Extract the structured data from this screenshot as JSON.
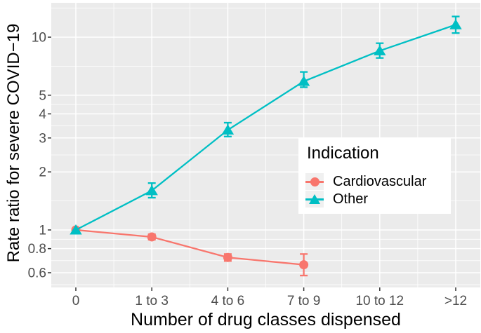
{
  "style": {
    "background": "#FFFFFF",
    "panel_background": "#EBEBEB",
    "gridline_color": "#FFFFFF",
    "tick_color": "#333333",
    "tick_label_color": "#4D4D4D",
    "axis_title_color": "#000000",
    "legend_key_background": "#F0F0F0"
  },
  "chart_data": {
    "type": "line",
    "title": "",
    "xlabel": "Number of drug classes dispensed",
    "ylabel": "Rate ratio for severe COVID−19",
    "x_categories": [
      "0",
      "1 to 3",
      "4 to 6",
      "7 to 9",
      "10 to 12",
      ">12"
    ],
    "y_scale": "log10",
    "y_ticks": [
      0.6,
      0.8,
      1,
      2,
      3,
      4,
      5,
      10
    ],
    "y_tick_labels": [
      "0.6",
      "0.8",
      "1",
      "2",
      "3",
      "4",
      "5",
      "10"
    ],
    "ylim": [
      0.5,
      15
    ],
    "grid": true,
    "legend": {
      "title": "Indication",
      "position": "inside-right"
    },
    "series": [
      {
        "name": "Cardiovascular",
        "color": "#F8766D",
        "marker": "circle",
        "values": [
          1.0,
          0.92,
          0.72,
          0.66,
          null,
          null
        ],
        "ci_low": [
          null,
          0.89,
          0.69,
          0.58,
          null,
          null
        ],
        "ci_high": [
          null,
          0.95,
          0.75,
          0.75,
          null,
          null
        ]
      },
      {
        "name": "Other",
        "color": "#00BFC4",
        "marker": "triangle",
        "values": [
          1.0,
          1.6,
          3.3,
          5.9,
          8.5,
          11.6
        ],
        "ci_low": [
          null,
          1.47,
          3.05,
          5.5,
          7.8,
          10.5
        ],
        "ci_high": [
          null,
          1.75,
          3.6,
          6.6,
          9.3,
          12.8
        ]
      }
    ]
  }
}
